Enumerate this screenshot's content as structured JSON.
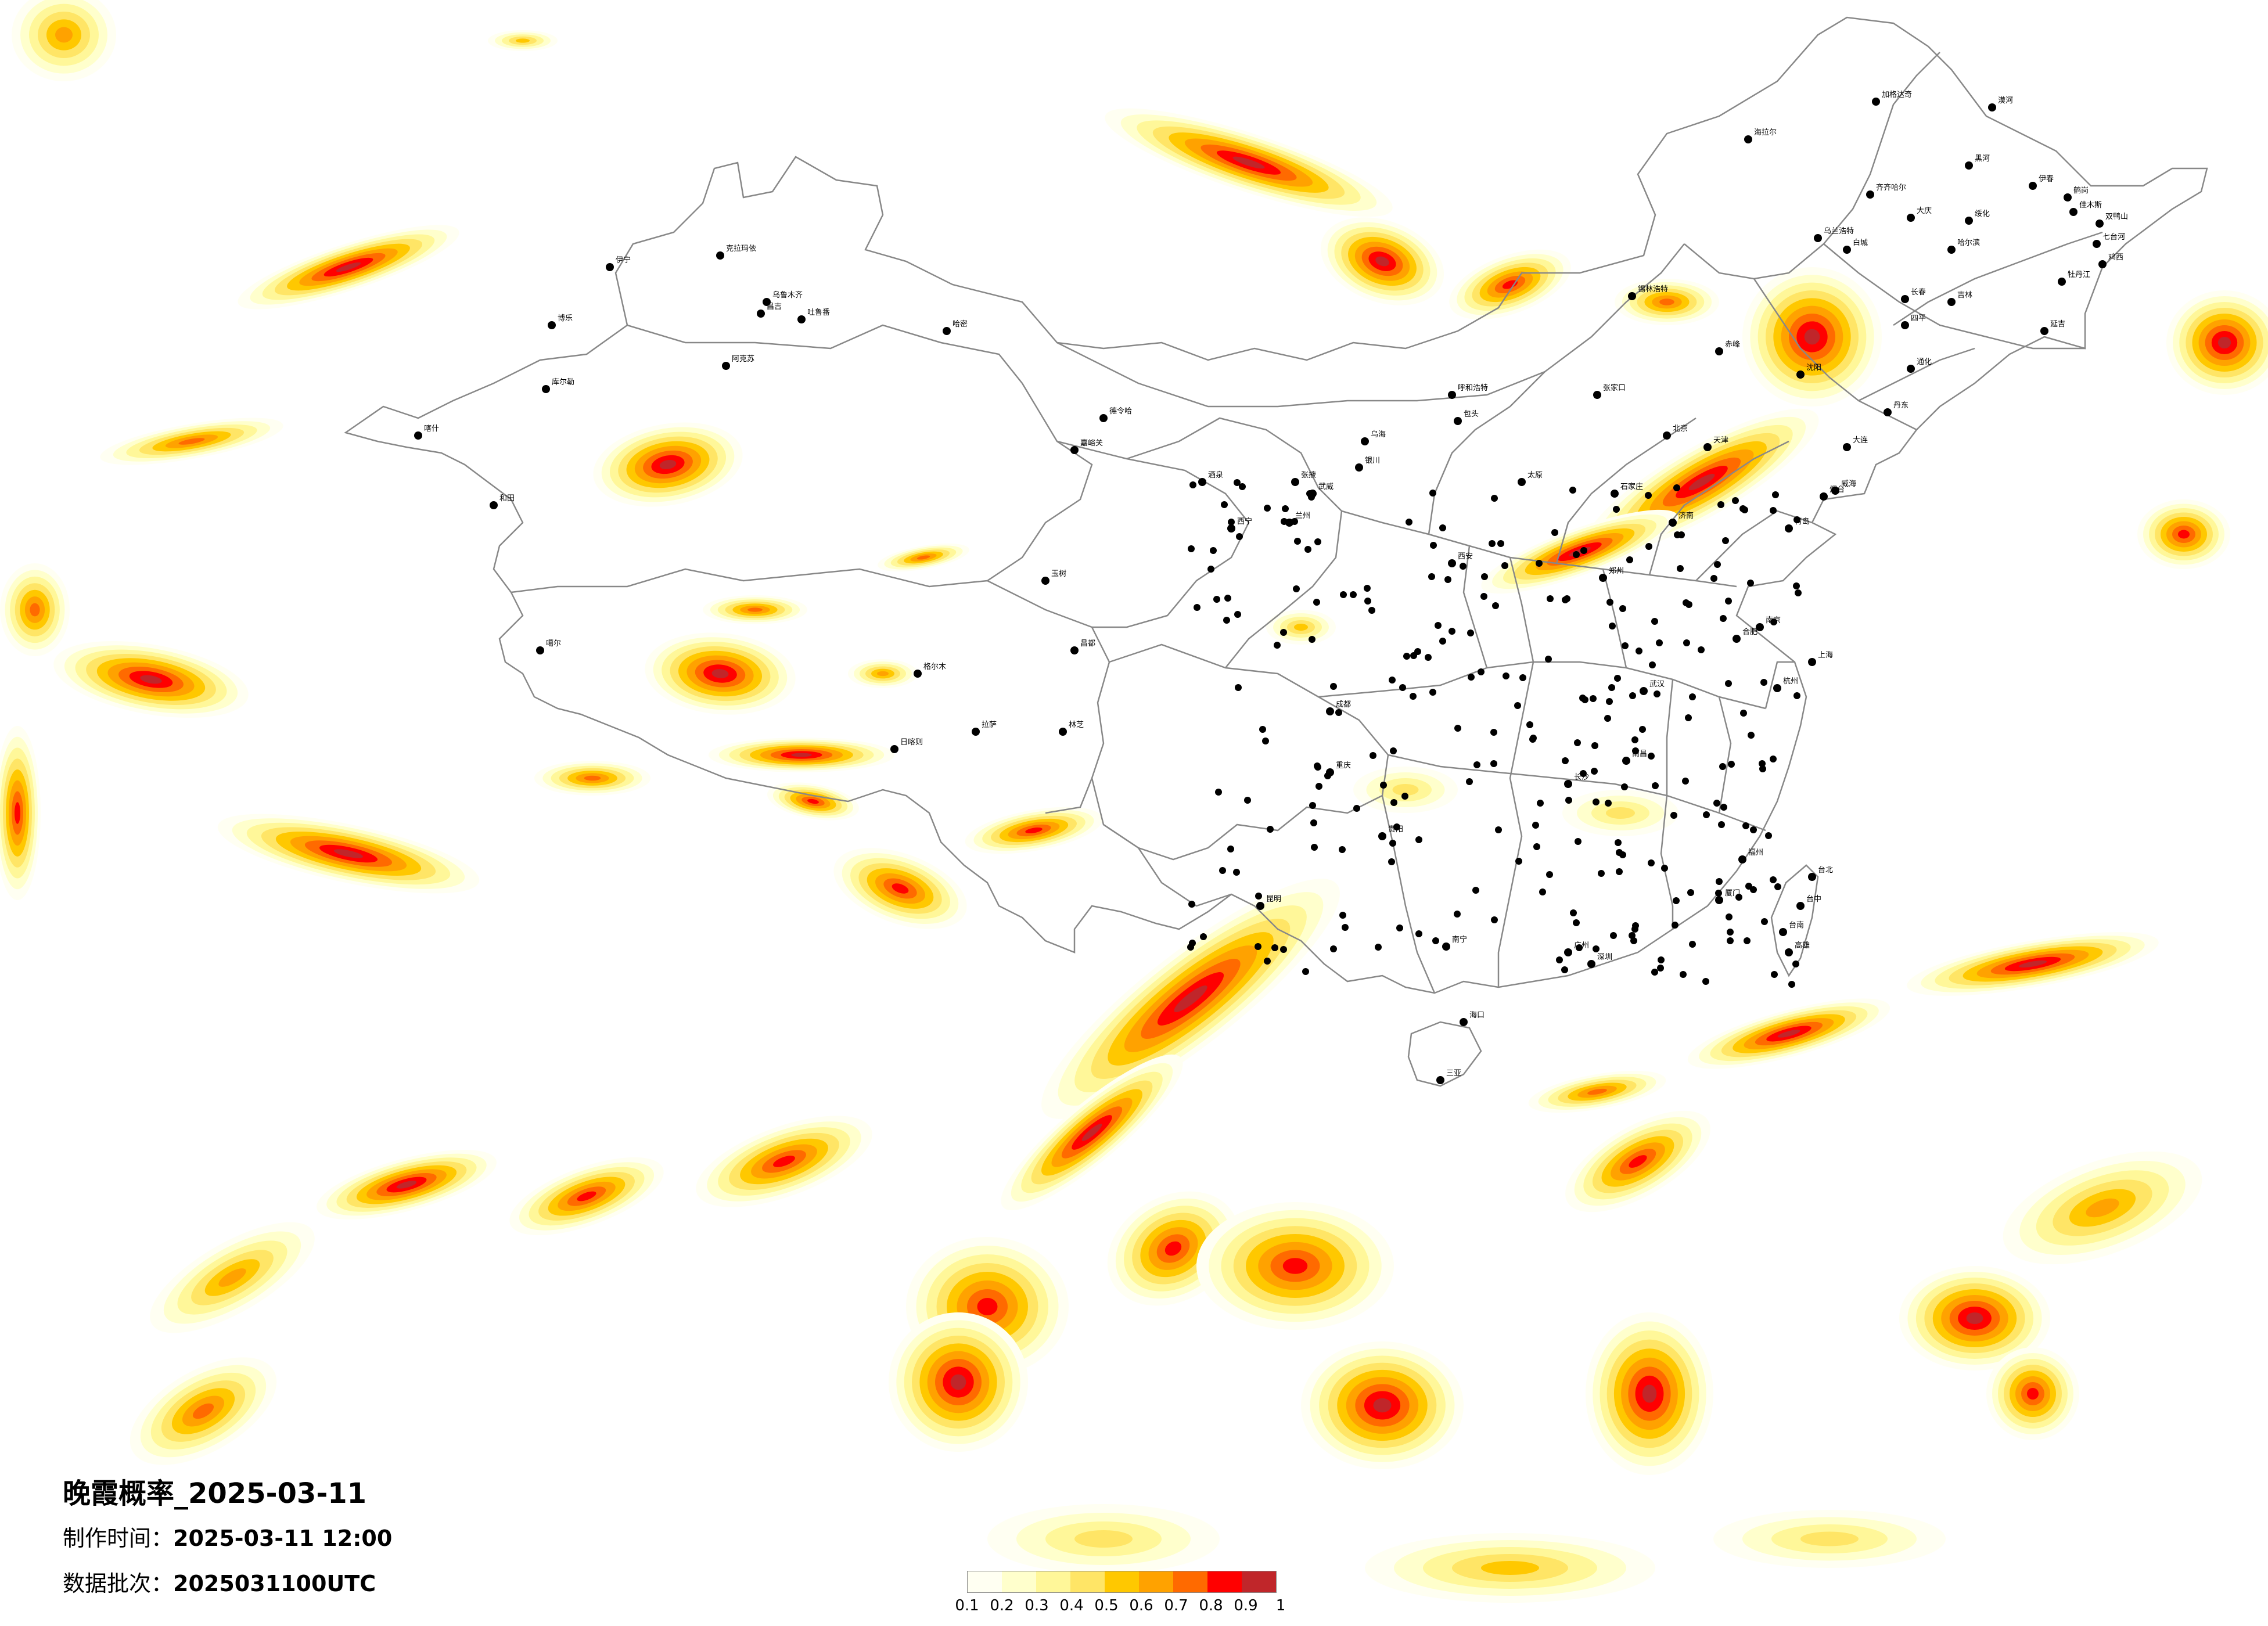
{
  "title": "晚霞概率_2025-03-11",
  "made_time_label": "制作时间：",
  "made_time_value": "2025-03-11 12:00",
  "batch_label": "数据批次：",
  "batch_value": "2025031100UTC",
  "legend": {
    "colors": [
      "#fffff2",
      "#ffffcc",
      "#fff799",
      "#ffe566",
      "#ffc800",
      "#ffa200",
      "#ff6a00",
      "#ff0000",
      "#c0262a"
    ],
    "ticks": [
      "0.1",
      "0.2",
      "0.3",
      "0.4",
      "0.5",
      "0.6",
      "0.7",
      "0.8",
      "0.9",
      "1"
    ]
  },
  "cities": [
    {
      "name": "漠河"
    },
    {
      "name": "加格达奇"
    },
    {
      "name": "海拉尔"
    },
    {
      "name": "黑河"
    },
    {
      "name": "伊春"
    },
    {
      "name": "鹤岗"
    },
    {
      "name": "佳木斯"
    },
    {
      "name": "双鸭山"
    },
    {
      "name": "齐齐哈尔"
    },
    {
      "name": "大庆"
    },
    {
      "name": "绥化"
    },
    {
      "name": "哈尔滨"
    },
    {
      "name": "七台河"
    },
    {
      "name": "鸡西"
    },
    {
      "name": "牡丹江"
    },
    {
      "name": "乌兰浩特"
    },
    {
      "name": "白城"
    },
    {
      "name": "长春"
    },
    {
      "name": "吉林"
    },
    {
      "name": "四平"
    },
    {
      "name": "延吉"
    },
    {
      "name": "通化"
    },
    {
      "name": "锡林浩特"
    },
    {
      "name": "赤峰"
    },
    {
      "name": "沈阳"
    },
    {
      "name": "丹东"
    },
    {
      "name": "大连"
    },
    {
      "name": "张家口"
    },
    {
      "name": "北京"
    },
    {
      "name": "天津"
    },
    {
      "name": "石家庄"
    },
    {
      "name": "太原"
    },
    {
      "name": "呼和浩特"
    },
    {
      "name": "包头"
    },
    {
      "name": "乌海"
    },
    {
      "name": "银川"
    },
    {
      "name": "兰州"
    },
    {
      "name": "西宁"
    },
    {
      "name": "西安"
    },
    {
      "name": "郑州"
    },
    {
      "name": "济南"
    },
    {
      "name": "青岛"
    },
    {
      "name": "烟台"
    },
    {
      "name": "威海"
    },
    {
      "name": "合肥"
    },
    {
      "name": "南京"
    },
    {
      "name": "上海"
    },
    {
      "name": "杭州"
    },
    {
      "name": "武汉"
    },
    {
      "name": "长沙"
    },
    {
      "name": "南昌"
    },
    {
      "name": "福州"
    },
    {
      "name": "厦门"
    },
    {
      "name": "广州"
    },
    {
      "name": "深圳"
    },
    {
      "name": "南宁"
    },
    {
      "name": "海口"
    },
    {
      "name": "三亚"
    },
    {
      "name": "贵阳"
    },
    {
      "name": "昆明"
    },
    {
      "name": "成都"
    },
    {
      "name": "重庆"
    },
    {
      "name": "拉萨"
    },
    {
      "name": "日喀则"
    },
    {
      "name": "林芝"
    },
    {
      "name": "昌都"
    },
    {
      "name": "玉树"
    },
    {
      "name": "格尔木"
    },
    {
      "name": "德令哈"
    },
    {
      "name": "嘉峪关"
    },
    {
      "name": "酒泉"
    },
    {
      "name": "张掖"
    },
    {
      "name": "武威"
    },
    {
      "name": "哈密"
    },
    {
      "name": "吐鲁番"
    },
    {
      "name": "乌鲁木齐"
    },
    {
      "name": "昌吉"
    },
    {
      "name": "克拉玛依"
    },
    {
      "name": "伊宁"
    },
    {
      "name": "博乐"
    },
    {
      "name": "库尔勒"
    },
    {
      "name": "阿克苏"
    },
    {
      "name": "喀什"
    },
    {
      "name": "和田"
    },
    {
      "name": "噶尔"
    },
    {
      "name": "台北"
    },
    {
      "name": "台中"
    },
    {
      "name": "高雄"
    },
    {
      "name": "台南"
    }
  ]
}
